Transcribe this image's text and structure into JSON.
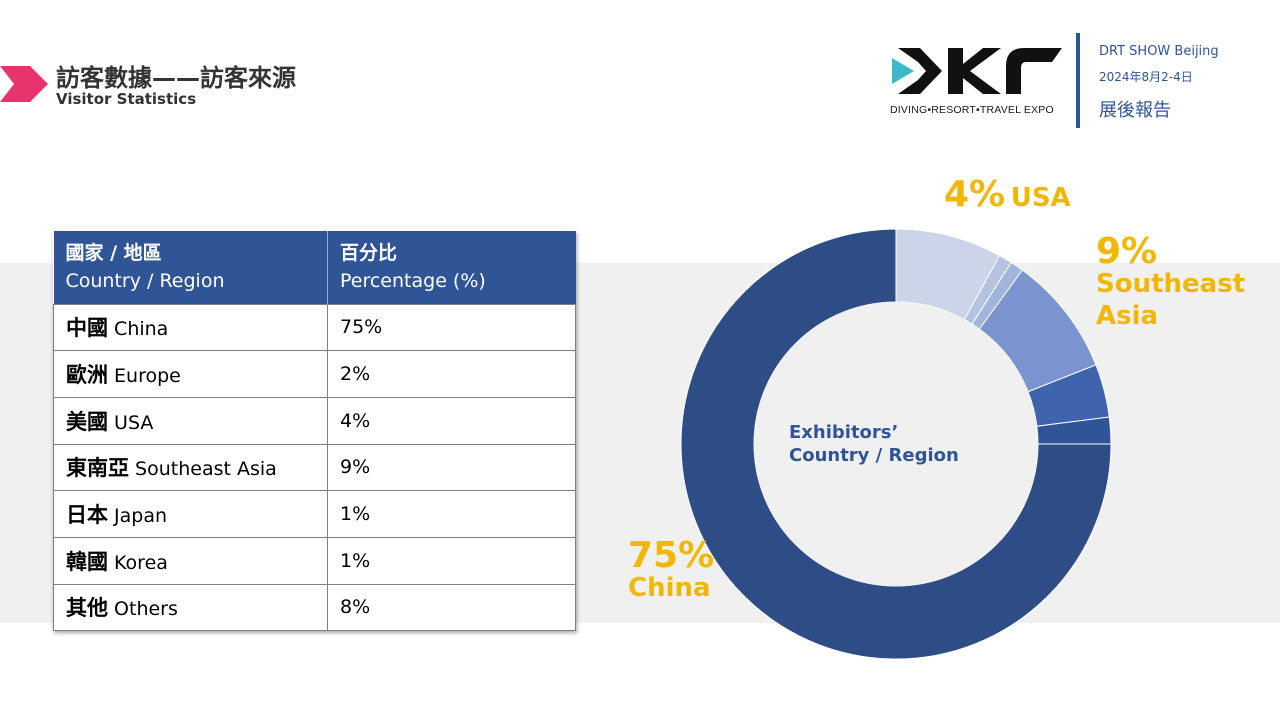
{
  "header": {
    "title_zh": "訪客數據——訪客來源",
    "title_en": "Visitor Statistics"
  },
  "logo": {
    "tagline": "DIVING•RESORT•TRAVEL EXPO"
  },
  "show": {
    "name": "DRT SHOW Beijing",
    "date": "2024年8月2-4日",
    "report": "展後報告"
  },
  "table": {
    "col1_zh": "國家 / 地區",
    "col1_en": "Country / Region",
    "col2_zh": "百分比",
    "col2_en": "Percentage (%)",
    "rows": [
      {
        "zh": "中國",
        "en": "China",
        "pct": "75%"
      },
      {
        "zh": "歐洲",
        "en": "Europe",
        "pct": "2%"
      },
      {
        "zh": "美國",
        "en": "USA",
        "pct": "4%"
      },
      {
        "zh": "東南亞",
        "en": "Southeast Asia",
        "pct": "9%"
      },
      {
        "zh": "日本",
        "en": "Japan",
        "pct": "1%"
      },
      {
        "zh": "韓國",
        "en": "Korea",
        "pct": "1%"
      },
      {
        "zh": "其他",
        "en": "Others",
        "pct": "8%"
      }
    ]
  },
  "chart_data": {
    "type": "pie",
    "donut": true,
    "title": "Exhibitors’\nCountry / Region",
    "categories": [
      "Others",
      "Korea",
      "Japan",
      "Southeast Asia",
      "USA",
      "Europe",
      "China"
    ],
    "values": [
      8,
      1,
      1,
      9,
      4,
      2,
      75
    ],
    "colors": [
      "#ccd4ea",
      "#b5c2e2",
      "#a3b4dc",
      "#7b93cf",
      "#3f63ad",
      "#2f5597",
      "#2e4d86"
    ],
    "callouts": [
      {
        "key": "usa",
        "pct": "4%",
        "name": "USA"
      },
      {
        "key": "sea",
        "pct": "9%",
        "name": "Southeast\nAsia"
      },
      {
        "key": "china",
        "pct": "75%",
        "name": "China"
      }
    ]
  },
  "colors": {
    "accent_blue": "#2f5597",
    "callout_gold": "#f2b705",
    "arrow_pink": "#e8336d",
    "logo_cyan": "#3ab9c6"
  }
}
